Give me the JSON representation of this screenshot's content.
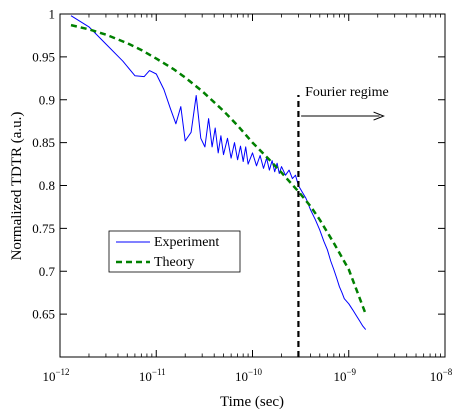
{
  "chart_data": {
    "type": "line",
    "title": "",
    "xlabel": "Time (sec)",
    "ylabel": "Normalized TDTR (a.u.)",
    "xscale": "log",
    "xlim": [
      1e-12,
      1e-08
    ],
    "ylim": [
      0.6,
      1.0
    ],
    "grid": false,
    "legend_position": "center-left",
    "x_ticks": [
      {
        "base": "10",
        "exp": "−12",
        "value": 1e-12
      },
      {
        "base": "10",
        "exp": "−11",
        "value": 1e-11
      },
      {
        "base": "10",
        "exp": "−10",
        "value": 1e-10
      },
      {
        "base": "10",
        "exp": "−9",
        "value": 1e-09
      },
      {
        "base": "10",
        "exp": "−8",
        "value": 1e-08
      }
    ],
    "y_ticks": [
      {
        "label": "0.65",
        "value": 0.65
      },
      {
        "label": "0.7",
        "value": 0.7
      },
      {
        "label": "0.75",
        "value": 0.75
      },
      {
        "label": "0.8",
        "value": 0.8
      },
      {
        "label": "0.85",
        "value": 0.85
      },
      {
        "label": "0.9",
        "value": 0.9
      },
      {
        "label": "0.95",
        "value": 0.95
      },
      {
        "label": "1",
        "value": 1.0
      }
    ],
    "series": [
      {
        "name": "Experiment",
        "color": "#0000ff",
        "style": "solid",
        "x": [
          1.3e-12,
          2e-12,
          3e-12,
          4.5e-12,
          6e-12,
          7.5e-12,
          8.5e-12,
          1e-11,
          1.2e-11,
          1.4e-11,
          1.6e-11,
          1.8e-11,
          2e-11,
          2.3e-11,
          2.6e-11,
          2.9e-11,
          3.2e-11,
          3.5e-11,
          3.8e-11,
          4.1e-11,
          4.4e-11,
          4.7e-11,
          5e-11,
          5.5e-11,
          6e-11,
          6.5e-11,
          7e-11,
          7.5e-11,
          8e-11,
          8.5e-11,
          9e-11,
          1e-10,
          1.1e-10,
          1.2e-10,
          1.3e-10,
          1.4e-10,
          1.5e-10,
          1.6e-10,
          1.7e-10,
          1.8e-10,
          1.9e-10,
          2e-10,
          2.2e-10,
          2.4e-10,
          2.6e-10,
          2.8e-10,
          3e-10,
          3.3e-10,
          3.6e-10,
          4e-10,
          4.5e-10,
          5e-10,
          5.5e-10,
          6e-10,
          6.5e-10,
          7e-10,
          7.5e-10,
          8e-10,
          8.5e-10,
          9e-10,
          1e-09,
          1.1e-09,
          1.2e-09,
          1.3e-09,
          1.4e-09,
          1.5e-09
        ],
        "y": [
          0.998,
          0.985,
          0.965,
          0.945,
          0.928,
          0.927,
          0.934,
          0.93,
          0.912,
          0.89,
          0.872,
          0.892,
          0.852,
          0.862,
          0.905,
          0.855,
          0.845,
          0.878,
          0.845,
          0.867,
          0.838,
          0.858,
          0.836,
          0.855,
          0.832,
          0.85,
          0.83,
          0.846,
          0.828,
          0.845,
          0.825,
          0.838,
          0.823,
          0.835,
          0.82,
          0.832,
          0.818,
          0.829,
          0.816,
          0.826,
          0.814,
          0.822,
          0.812,
          0.818,
          0.808,
          0.812,
          0.8,
          0.792,
          0.785,
          0.772,
          0.76,
          0.748,
          0.735,
          0.725,
          0.712,
          0.702,
          0.692,
          0.682,
          0.675,
          0.668,
          0.662,
          0.655,
          0.648,
          0.642,
          0.636,
          0.632
        ]
      },
      {
        "name": "Theory",
        "color": "#008000",
        "style": "dashed",
        "x": [
          1.3e-12,
          2e-12,
          3e-12,
          5e-12,
          7e-12,
          1e-11,
          1.5e-11,
          2e-11,
          3e-11,
          5e-11,
          7e-11,
          1e-10,
          1.5e-10,
          2e-10,
          3e-10,
          4e-10,
          5e-10,
          7e-10,
          1e-09,
          1.5e-09
        ],
        "y": [
          0.987,
          0.982,
          0.976,
          0.966,
          0.958,
          0.948,
          0.936,
          0.926,
          0.91,
          0.887,
          0.87,
          0.85,
          0.83,
          0.815,
          0.793,
          0.776,
          0.76,
          0.733,
          0.702,
          0.65
        ]
      }
    ],
    "annotations": [
      {
        "name": "boundary",
        "type": "vline",
        "x": 3e-10,
        "color": "#000000",
        "style": "dashed"
      },
      {
        "name": "fourier",
        "text": "Fourier regime",
        "type": "arrow",
        "x_from": 3.2e-10,
        "x_to": 2.3e-09,
        "y": 0.881
      }
    ]
  }
}
